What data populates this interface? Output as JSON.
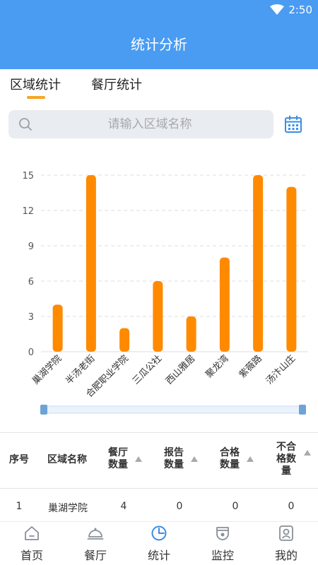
{
  "status_bar": {
    "time": "2:50"
  },
  "header": {
    "title": "统计分析"
  },
  "tabs": [
    {
      "label": "区域统计",
      "active": true
    },
    {
      "label": "餐厅统计",
      "active": false
    }
  ],
  "search": {
    "placeholder": "请输入区域名称",
    "value": ""
  },
  "colors": {
    "primary": "#4a9cf2",
    "bar": "#ff8a00",
    "accent": "#f5a623"
  },
  "chart_data": {
    "type": "bar",
    "categories": [
      "巢湖学院",
      "半汤老街",
      "合肥职业学院",
      "三瓜公社",
      "西山雅居",
      "聚龙湾",
      "紫薇路",
      "汤汴山庄"
    ],
    "values": [
      4,
      15,
      2,
      6,
      3,
      8,
      15,
      14
    ],
    "yticks": [
      0,
      3,
      6,
      9,
      12,
      15
    ],
    "ylim": [
      0,
      15
    ],
    "grid": true
  },
  "table": {
    "headers": [
      "序号",
      "区域名称",
      "餐厅数量",
      "报告数量",
      "合格数量",
      "不合格数量"
    ],
    "rows": [
      [
        "1",
        "巢湖学院",
        "4",
        "0",
        "0",
        "0"
      ]
    ]
  },
  "nav": [
    {
      "label": "首页",
      "icon": "home-icon"
    },
    {
      "label": "餐厅",
      "icon": "dish-cover-icon"
    },
    {
      "label": "统计",
      "icon": "pie-chart-icon"
    },
    {
      "label": "监控",
      "icon": "camera-icon"
    },
    {
      "label": "我的",
      "icon": "user-icon"
    }
  ]
}
